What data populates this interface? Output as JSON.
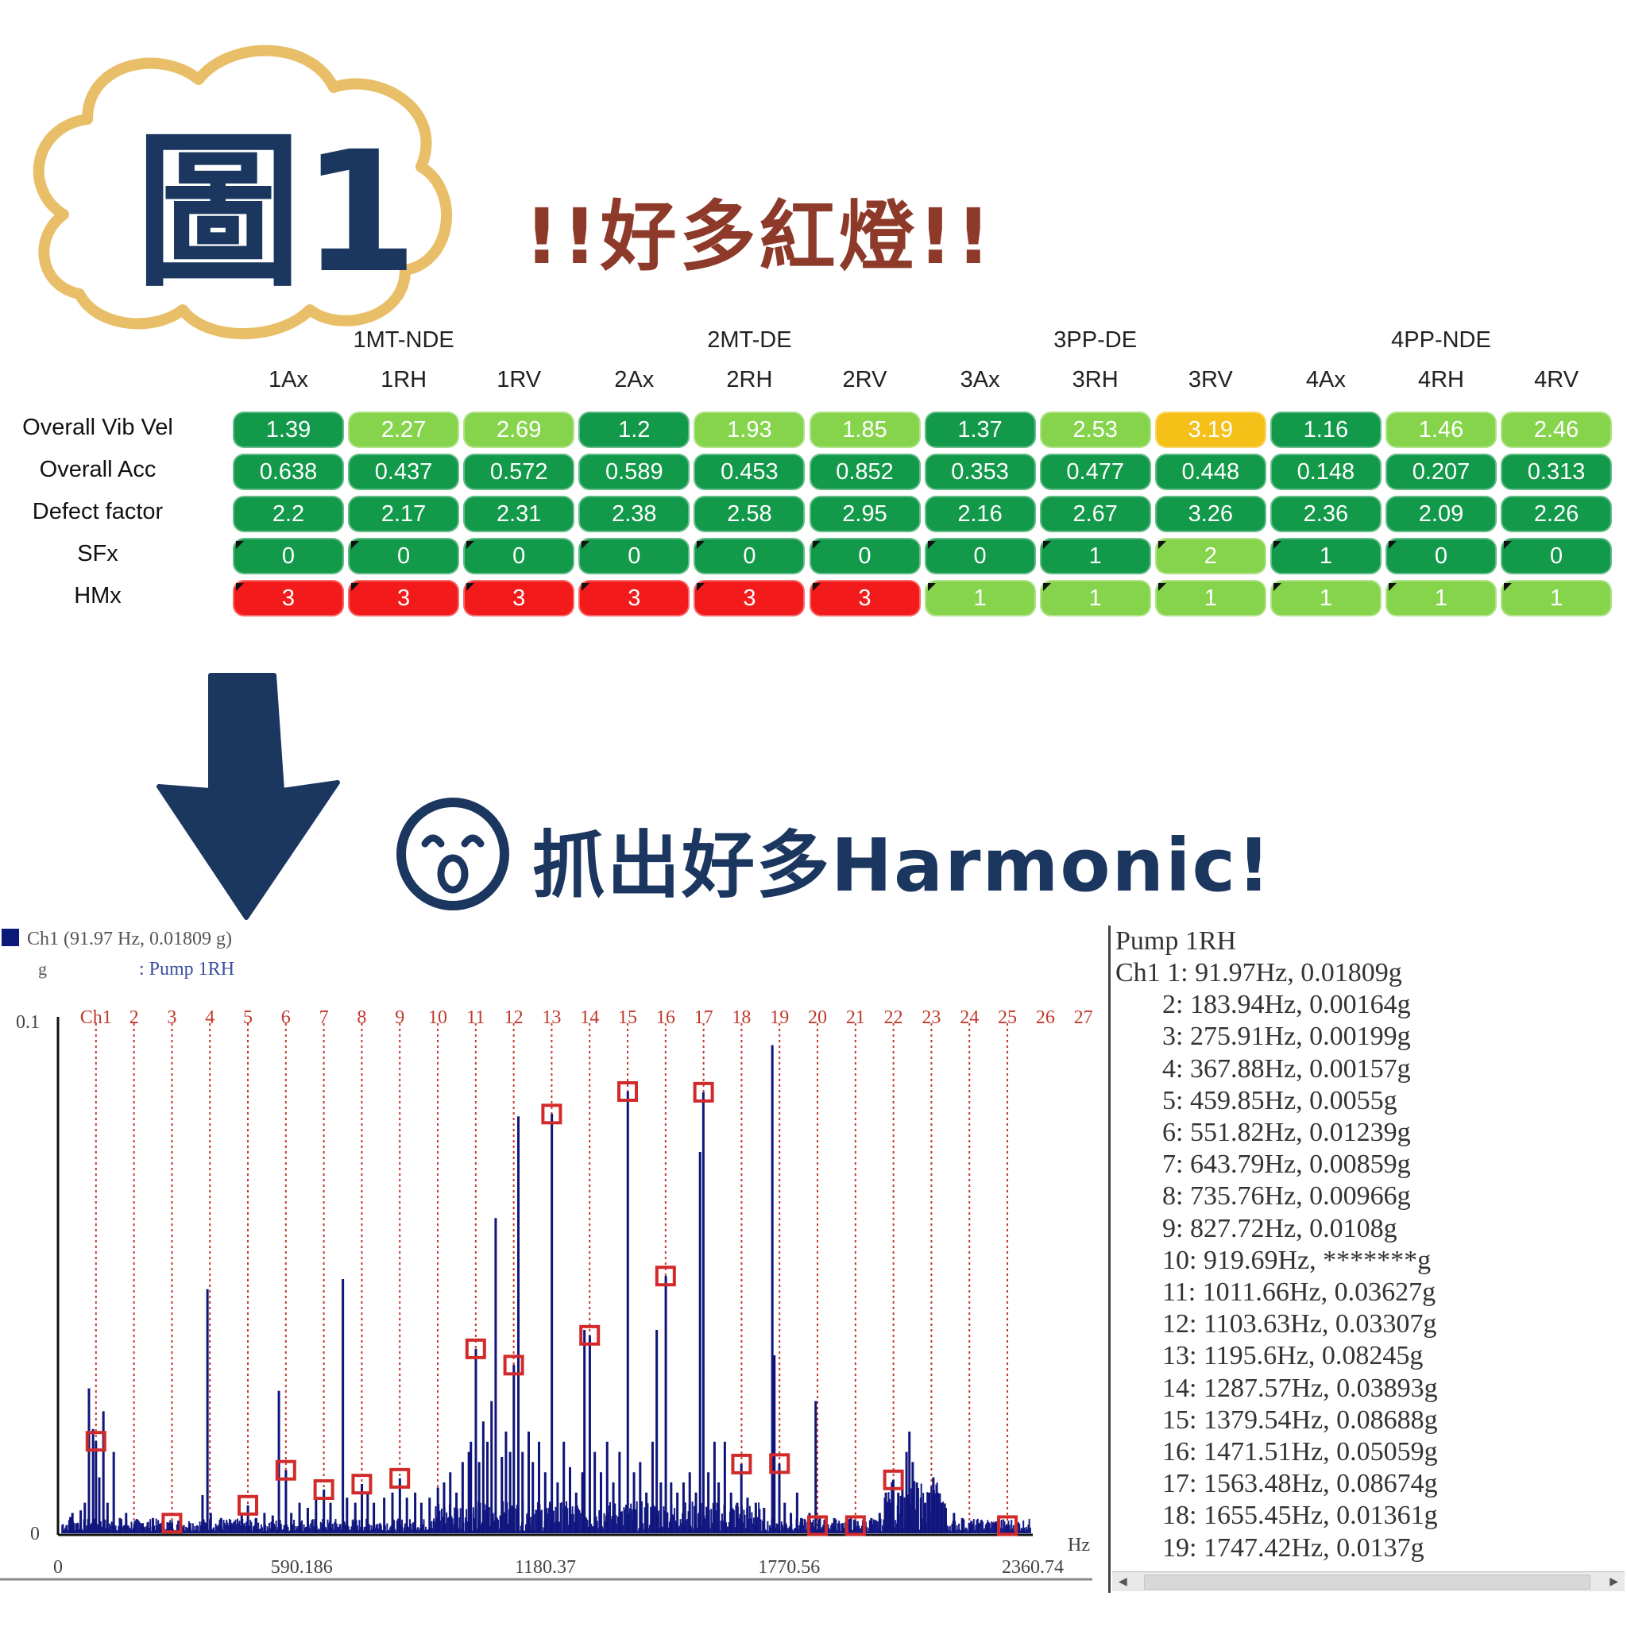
{
  "title": {
    "tag": "圖1",
    "headline": "!!好多紅燈!!",
    "subheadline": "抓出好多Harmonic!"
  },
  "colors": {
    "dark_green": "#12994a",
    "light_green": "#86d44c",
    "red": "#f21a1a",
    "yellow": "#f5c018",
    "navy": "#1b365f",
    "crimson": "#d22a2a"
  },
  "table": {
    "groups": [
      "1MT-NDE",
      "2MT-DE",
      "3PP-DE",
      "4PP-NDE"
    ],
    "columns": [
      "1Ax",
      "1RH",
      "1RV",
      "2Ax",
      "2RH",
      "2RV",
      "3Ax",
      "3RH",
      "3RV",
      "4Ax",
      "4RH",
      "4RV"
    ],
    "rows": [
      {
        "label": "Overall Vib Vel",
        "values": [
          "1.39",
          "2.27",
          "2.69",
          "1.2",
          "1.93",
          "1.85",
          "1.37",
          "2.53",
          "3.19",
          "1.16",
          "1.46",
          "2.46"
        ],
        "colors": [
          "dark_green",
          "light_green",
          "light_green",
          "dark_green",
          "light_green",
          "light_green",
          "dark_green",
          "light_green",
          "yellow",
          "dark_green",
          "light_green",
          "light_green"
        ]
      },
      {
        "label": "Overall Acc",
        "values": [
          "0.638",
          "0.437",
          "0.572",
          "0.589",
          "0.453",
          "0.852",
          "0.353",
          "0.477",
          "0.448",
          "0.148",
          "0.207",
          "0.313"
        ],
        "colors": [
          "dark_green",
          "dark_green",
          "dark_green",
          "dark_green",
          "dark_green",
          "dark_green",
          "dark_green",
          "dark_green",
          "dark_green",
          "dark_green",
          "dark_green",
          "dark_green"
        ]
      },
      {
        "label": "Defect factor",
        "values": [
          "2.2",
          "2.17",
          "2.31",
          "2.38",
          "2.58",
          "2.95",
          "2.16",
          "2.67",
          "3.26",
          "2.36",
          "2.09",
          "2.26"
        ],
        "colors": [
          "dark_green",
          "dark_green",
          "dark_green",
          "dark_green",
          "dark_green",
          "dark_green",
          "dark_green",
          "dark_green",
          "dark_green",
          "dark_green",
          "dark_green",
          "dark_green"
        ]
      },
      {
        "label": "SFx",
        "values": [
          "0",
          "0",
          "0",
          "0",
          "0",
          "0",
          "0",
          "1",
          "2",
          "1",
          "0",
          "0"
        ],
        "colors": [
          "dark_green",
          "dark_green",
          "dark_green",
          "dark_green",
          "dark_green",
          "dark_green",
          "dark_green",
          "dark_green",
          "light_green",
          "dark_green",
          "dark_green",
          "dark_green"
        ]
      },
      {
        "label": "HMx",
        "values": [
          "3",
          "3",
          "3",
          "3",
          "3",
          "3",
          "1",
          "1",
          "1",
          "1",
          "1",
          "1"
        ],
        "colors": [
          "red",
          "red",
          "red",
          "red",
          "red",
          "red",
          "light_green",
          "light_green",
          "light_green",
          "light_green",
          "light_green",
          "light_green"
        ]
      }
    ]
  },
  "chart_data": {
    "type": "bar",
    "legend": "Ch1 (91.97 Hz, 0.01809 g)",
    "subtitle_unit": "g",
    "subtitle_name": ": Pump 1RH",
    "xlabel": "Hz",
    "xlim": [
      0,
      2360.74
    ],
    "ylim": [
      0,
      0.1
    ],
    "x_ticks": [
      "0",
      "590.186",
      "1180.37",
      "1770.56",
      "2360.74"
    ],
    "y_ticks": [
      "0",
      "0.1"
    ],
    "harmonic_labels": [
      "Ch1",
      "2",
      "3",
      "4",
      "5",
      "6",
      "7",
      "8",
      "9",
      "10",
      "11",
      "12",
      "13",
      "14",
      "15",
      "16",
      "17",
      "18",
      "19",
      "20",
      "21",
      "22",
      "23",
      "24",
      "25",
      "26",
      "27"
    ],
    "fundamental_hz": 91.97,
    "markers": [
      {
        "n": 1,
        "freq": 91.97,
        "amp": 0.01809
      },
      {
        "n": 3,
        "freq": 275.91,
        "amp": 0.00199
      },
      {
        "n": 5,
        "freq": 459.85,
        "amp": 0.0055
      },
      {
        "n": 6,
        "freq": 551.82,
        "amp": 0.01239
      },
      {
        "n": 7,
        "freq": 643.79,
        "amp": 0.00859
      },
      {
        "n": 8,
        "freq": 735.76,
        "amp": 0.00966
      },
      {
        "n": 9,
        "freq": 827.72,
        "amp": 0.0108
      },
      {
        "n": 11,
        "freq": 1011.66,
        "amp": 0.03627
      },
      {
        "n": 12,
        "freq": 1103.63,
        "amp": 0.03307
      },
      {
        "n": 13,
        "freq": 1195.6,
        "amp": 0.08245
      },
      {
        "n": 14,
        "freq": 1287.57,
        "amp": 0.03893
      },
      {
        "n": 15,
        "freq": 1379.54,
        "amp": 0.08688
      },
      {
        "n": 16,
        "freq": 1471.51,
        "amp": 0.05059
      },
      {
        "n": 17,
        "freq": 1563.48,
        "amp": 0.08674
      },
      {
        "n": 18,
        "freq": 1655.45,
        "amp": 0.01361
      },
      {
        "n": 19,
        "freq": 1747.42,
        "amp": 0.0137
      },
      {
        "n": 20,
        "freq": 1839.39,
        "amp": 0.0015
      },
      {
        "n": 21,
        "freq": 1931.36,
        "amp": 0.0015
      },
      {
        "n": 22,
        "freq": 2023.33,
        "amp": 0.0105
      },
      {
        "n": 25,
        "freq": 2299.25,
        "amp": 0.0015
      }
    ],
    "peaks": [
      [
        30,
        0.0032
      ],
      [
        35,
        0.004
      ],
      [
        45,
        0.002
      ],
      [
        55,
        0.0045
      ],
      [
        65,
        0.006
      ],
      [
        75,
        0.0285
      ],
      [
        85,
        0.0205
      ],
      [
        92,
        0.0181
      ],
      [
        100,
        0.011
      ],
      [
        110,
        0.024
      ],
      [
        120,
        0.006
      ],
      [
        135,
        0.016
      ],
      [
        150,
        0.003
      ],
      [
        165,
        0.004
      ],
      [
        185,
        0.0016
      ],
      [
        205,
        0.002
      ],
      [
        230,
        0.003
      ],
      [
        250,
        0.002
      ],
      [
        276,
        0.002
      ],
      [
        300,
        0.0015
      ],
      [
        320,
        0.002
      ],
      [
        350,
        0.0075
      ],
      [
        362,
        0.048
      ],
      [
        370,
        0.004
      ],
      [
        395,
        0.003
      ],
      [
        420,
        0.002
      ],
      [
        445,
        0.004
      ],
      [
        460,
        0.0055
      ],
      [
        480,
        0.003
      ],
      [
        500,
        0.004
      ],
      [
        520,
        0.0035
      ],
      [
        535,
        0.028
      ],
      [
        552,
        0.0124
      ],
      [
        565,
        0.004
      ],
      [
        585,
        0.006
      ],
      [
        605,
        0.005
      ],
      [
        625,
        0.007
      ],
      [
        644,
        0.0086
      ],
      [
        660,
        0.006
      ],
      [
        690,
        0.05
      ],
      [
        700,
        0.007
      ],
      [
        720,
        0.006
      ],
      [
        736,
        0.0097
      ],
      [
        750,
        0.008
      ],
      [
        765,
        0.006
      ],
      [
        790,
        0.007
      ],
      [
        810,
        0.008
      ],
      [
        828,
        0.0108
      ],
      [
        845,
        0.007
      ],
      [
        865,
        0.008
      ],
      [
        880,
        0.006
      ],
      [
        900,
        0.007
      ],
      [
        920,
        0.009
      ],
      [
        935,
        0.01
      ],
      [
        950,
        0.012
      ],
      [
        965,
        0.008
      ],
      [
        980,
        0.014
      ],
      [
        995,
        0.016
      ],
      [
        1000,
        0.018
      ],
      [
        1012,
        0.0363
      ],
      [
        1020,
        0.014
      ],
      [
        1030,
        0.022
      ],
      [
        1040,
        0.018
      ],
      [
        1050,
        0.026
      ],
      [
        1060,
        0.062
      ],
      [
        1075,
        0.015
      ],
      [
        1085,
        0.02
      ],
      [
        1095,
        0.016
      ],
      [
        1104,
        0.0331
      ],
      [
        1115,
        0.082
      ],
      [
        1125,
        0.016
      ],
      [
        1140,
        0.02
      ],
      [
        1150,
        0.014
      ],
      [
        1165,
        0.018
      ],
      [
        1180,
        0.012
      ],
      [
        1196,
        0.0825
      ],
      [
        1210,
        0.01
      ],
      [
        1225,
        0.018
      ],
      [
        1240,
        0.013
      ],
      [
        1255,
        0.008
      ],
      [
        1270,
        0.012
      ],
      [
        1275,
        0.04
      ],
      [
        1288,
        0.0389
      ],
      [
        1300,
        0.016
      ],
      [
        1315,
        0.012
      ],
      [
        1330,
        0.018
      ],
      [
        1345,
        0.01
      ],
      [
        1360,
        0.016
      ],
      [
        1380,
        0.0869
      ],
      [
        1395,
        0.012
      ],
      [
        1410,
        0.014
      ],
      [
        1425,
        0.008
      ],
      [
        1440,
        0.018
      ],
      [
        1450,
        0.04
      ],
      [
        1460,
        0.01
      ],
      [
        1472,
        0.0506
      ],
      [
        1485,
        0.01
      ],
      [
        1500,
        0.008
      ],
      [
        1515,
        0.01
      ],
      [
        1530,
        0.012
      ],
      [
        1545,
        0.008
      ],
      [
        1555,
        0.075
      ],
      [
        1563,
        0.0867
      ],
      [
        1575,
        0.012
      ],
      [
        1590,
        0.018
      ],
      [
        1600,
        0.01
      ],
      [
        1615,
        0.018
      ],
      [
        1630,
        0.008
      ],
      [
        1645,
        0.006
      ],
      [
        1655,
        0.0136
      ],
      [
        1670,
        0.007
      ],
      [
        1690,
        0.006
      ],
      [
        1710,
        0.005
      ],
      [
        1730,
        0.096
      ],
      [
        1735,
        0.035
      ],
      [
        1747,
        0.0137
      ],
      [
        1760,
        0.006
      ],
      [
        1775,
        0.004
      ],
      [
        1790,
        0.008
      ],
      [
        1800,
        0.003
      ],
      [
        1820,
        0.004
      ],
      [
        1835,
        0.026
      ],
      [
        1845,
        0.003
      ],
      [
        1860,
        0.002
      ],
      [
        1880,
        0.003
      ],
      [
        1900,
        0.002
      ],
      [
        1920,
        0.003
      ],
      [
        1931,
        0.0015
      ],
      [
        1950,
        0.002
      ],
      [
        1970,
        0.003
      ],
      [
        1990,
        0.004
      ],
      [
        2005,
        0.008
      ],
      [
        2015,
        0.006
      ],
      [
        2023,
        0.0105
      ],
      [
        2035,
        0.008
      ],
      [
        2045,
        0.011
      ],
      [
        2055,
        0.016
      ],
      [
        2062,
        0.02
      ],
      [
        2070,
        0.014
      ],
      [
        2080,
        0.01
      ],
      [
        2090,
        0.007
      ],
      [
        2100,
        0.006
      ],
      [
        2110,
        0.008
      ],
      [
        2120,
        0.011
      ],
      [
        2130,
        0.008
      ],
      [
        2140,
        0.006
      ],
      [
        2150,
        0.005
      ],
      [
        2170,
        0.004
      ],
      [
        2190,
        0.003
      ],
      [
        2210,
        0.002
      ],
      [
        2230,
        0.002
      ],
      [
        2250,
        0.002
      ],
      [
        2270,
        0.002
      ],
      [
        2299,
        0.0015
      ],
      [
        2320,
        0.001
      ],
      [
        2340,
        0.001
      ]
    ]
  },
  "listing": {
    "title": "Pump 1RH",
    "lines": [
      "Ch1    1: 91.97Hz, 0.01809g",
      "2: 183.94Hz, 0.00164g",
      "3: 275.91Hz, 0.00199g",
      "4: 367.88Hz, 0.00157g",
      "5: 459.85Hz, 0.0055g",
      "6: 551.82Hz, 0.01239g",
      "7: 643.79Hz, 0.00859g",
      "8: 735.76Hz, 0.00966g",
      "9: 827.72Hz, 0.0108g",
      "10: 919.69Hz, *******g",
      "11: 1011.66Hz, 0.03627g",
      "12: 1103.63Hz, 0.03307g",
      "13: 1195.6Hz, 0.08245g",
      "14: 1287.57Hz, 0.03893g",
      "15: 1379.54Hz, 0.08688g",
      "16: 1471.51Hz, 0.05059g",
      "17: 1563.48Hz, 0.08674g",
      "18: 1655.45Hz, 0.01361g",
      "19: 1747.42Hz, 0.0137g"
    ]
  }
}
